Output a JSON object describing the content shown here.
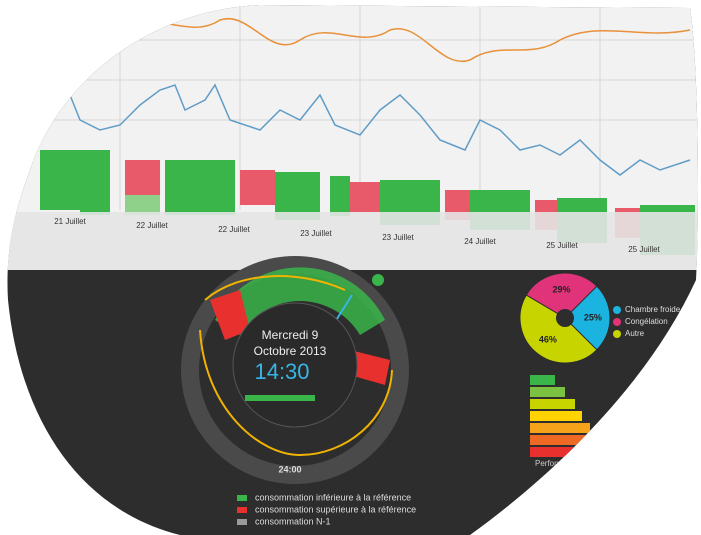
{
  "timeline": {
    "dates": [
      "21 Juillet",
      "22 Juillet",
      "22 Juillet",
      "23 Juillet",
      "23 Juillet",
      "24 Juillet",
      "25 Juillet",
      "25 Juillet"
    ]
  },
  "clock": {
    "day": "Mercredi 9",
    "month_year": "Octobre 2013",
    "time": "14:30",
    "midnight": "24:00"
  },
  "pie": {
    "type": "pie",
    "categories": [
      "Chambre froide",
      "Congélation",
      "Autre"
    ],
    "values": [
      25,
      29,
      46
    ],
    "value_labels": [
      "25%",
      "29%",
      "46%"
    ],
    "colors": [
      "#1bb3e0",
      "#e0337a",
      "#c8d400"
    ]
  },
  "energy": {
    "label": "Performance énergétique"
  },
  "legend": {
    "items": [
      "consommation inférieure à la référence",
      "consommation supérieure à la référence",
      "consommation N-1"
    ]
  }
}
